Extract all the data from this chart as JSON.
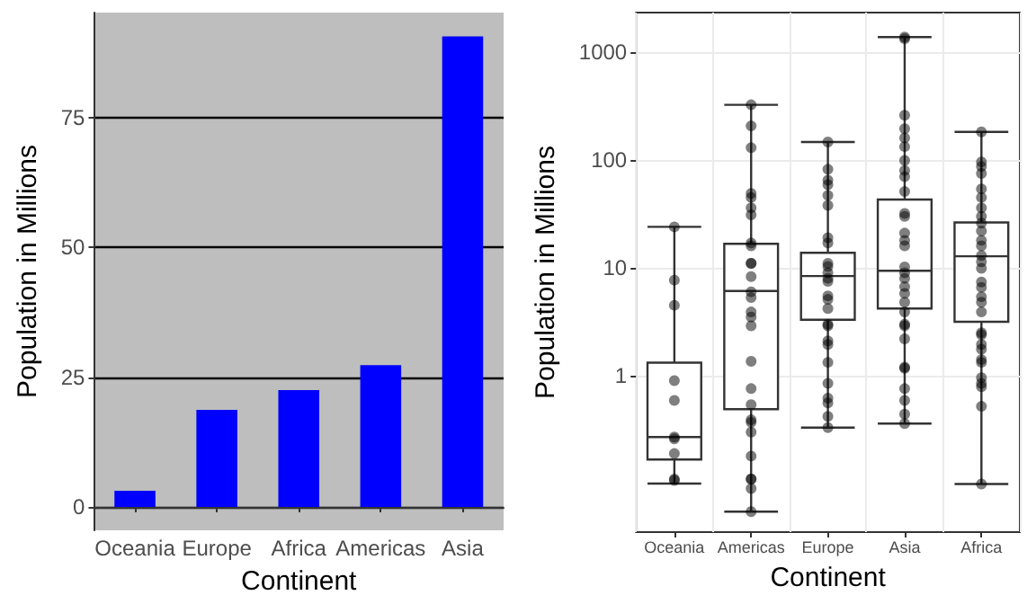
{
  "chart_data": [
    {
      "type": "bar",
      "xlabel": "Continent",
      "ylabel": "Population in Millions",
      "categories": [
        "Oceania",
        "Europe",
        "Africa",
        "Americas",
        "Asia"
      ],
      "values": [
        3.1,
        18.7,
        22.5,
        27.3,
        90.6
      ],
      "color": "#0000ff",
      "ylim": [
        -4.5,
        95.2
      ],
      "yticks": [
        0,
        25,
        50,
        75
      ],
      "grid": "y"
    },
    {
      "type": "box",
      "xlabel": "Continent",
      "ylabel": "Population in Millions",
      "categories": [
        "Oceania",
        "Americas",
        "Europe",
        "Asia",
        "Africa"
      ],
      "log": "y",
      "ylim": [
        0.0355,
        2327
      ],
      "yticks": [
        1,
        10,
        100,
        1000
      ],
      "grid": true,
      "boxes": [
        {
          "low": 0.1,
          "q1": 0.167,
          "median": 0.27,
          "q3": 1.32,
          "high": 24
        },
        {
          "low": 0.055,
          "q1": 0.49,
          "median": 6.1,
          "q3": 16.7,
          "high": 325
        },
        {
          "low": 0.33,
          "q1": 3.3,
          "median": 8.4,
          "q3": 13.8,
          "high": 147
        },
        {
          "low": 0.36,
          "q1": 4.2,
          "median": 9.4,
          "q3": 43,
          "high": 1380
        },
        {
          "low": 0.099,
          "q1": 3.16,
          "median": 12.8,
          "q3": 26.4,
          "high": 182
        }
      ],
      "series": [
        {
          "type": "scatter",
          "color": "#000000",
          "x": [
            "Oceania",
            "Oceania",
            "Oceania",
            "Oceania",
            "Oceania",
            "Oceania",
            "Oceania",
            "Oceania",
            "Oceania",
            "Oceania",
            "Americas",
            "Americas",
            "Americas",
            "Americas",
            "Americas",
            "Americas",
            "Americas",
            "Americas",
            "Americas",
            "Americas",
            "Americas",
            "Americas",
            "Americas",
            "Americas",
            "Americas",
            "Americas",
            "Americas",
            "Americas",
            "Americas",
            "Americas",
            "Americas",
            "Americas",
            "Americas",
            "Americas",
            "Americas",
            "Americas",
            "Americas",
            "Americas",
            "Europe",
            "Europe",
            "Europe",
            "Europe",
            "Europe",
            "Europe",
            "Europe",
            "Europe",
            "Europe",
            "Europe",
            "Europe",
            "Europe",
            "Europe",
            "Europe",
            "Europe",
            "Europe",
            "Europe",
            "Europe",
            "Europe",
            "Europe",
            "Europe",
            "Europe",
            "Europe",
            "Europe",
            "Europe",
            "Europe",
            "Asia",
            "Asia",
            "Asia",
            "Asia",
            "Asia",
            "Asia",
            "Asia",
            "Asia",
            "Asia",
            "Asia",
            "Asia",
            "Asia",
            "Asia",
            "Asia",
            "Asia",
            "Asia",
            "Asia",
            "Asia",
            "Asia",
            "Asia",
            "Asia",
            "Asia",
            "Asia",
            "Asia",
            "Asia",
            "Asia",
            "Asia",
            "Asia",
            "Asia",
            "Asia",
            "Asia",
            "Africa",
            "Africa",
            "Africa",
            "Africa",
            "Africa",
            "Africa",
            "Africa",
            "Africa",
            "Africa",
            "Africa",
            "Africa",
            "Africa",
            "Africa",
            "Africa",
            "Africa",
            "Africa",
            "Africa",
            "Africa",
            "Africa",
            "Africa",
            "Africa",
            "Africa",
            "Africa",
            "Africa",
            "Africa",
            "Africa",
            "Africa",
            "Africa",
            "Africa",
            "Africa",
            "Africa"
          ],
          "values": [
            24,
            7.7,
            4.5,
            0.9,
            0.59,
            0.27,
            0.26,
            0.19,
            0.11,
            0.107,
            325,
            207,
            130,
            49,
            45,
            36,
            31,
            17,
            16,
            11,
            11,
            8.3,
            6,
            5.3,
            3.9,
            3.5,
            2.9,
            1.36,
            0.76,
            0.54,
            0.39,
            0.37,
            0.3,
            0.18,
            0.11,
            0.11,
            0.09,
            0.055,
            147,
            82,
            65,
            59,
            47,
            38,
            19,
            17,
            11,
            10.3,
            9,
            8,
            7.5,
            5.5,
            5.1,
            4.2,
            3,
            2.9,
            2.1,
            1.95,
            1.33,
            0.85,
            0.62,
            0.56,
            0.42,
            0.33,
            1380,
            1330,
            260,
            195,
            160,
            133,
            99,
            80,
            70,
            51,
            32,
            30,
            21,
            18,
            16,
            10.2,
            9,
            8,
            6.7,
            5.8,
            4.8,
            3.9,
            3,
            2.9,
            2.2,
            1.2,
            1.17,
            0.76,
            0.59,
            0.44,
            0.36,
            182,
            96,
            87,
            75,
            54,
            45,
            36,
            30,
            26,
            22,
            18,
            16,
            13,
            11.4,
            9.9,
            7.4,
            6.6,
            5.4,
            4.8,
            3.9,
            2.5,
            2.4,
            1.95,
            1.76,
            1.41,
            1.33,
            0.96,
            0.85,
            0.79,
            0.52,
            0.099
          ]
        }
      ]
    }
  ]
}
